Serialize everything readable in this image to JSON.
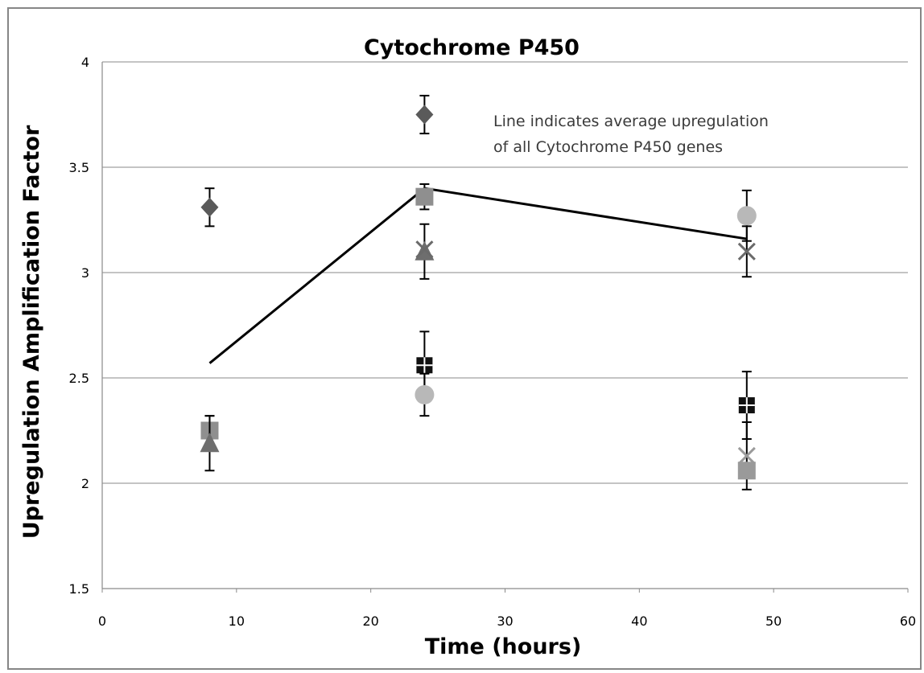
{
  "chart_data": {
    "type": "scatter",
    "title": "Cytochrome P450",
    "xlabel": "Time (hours)",
    "ylabel": "Upregulation Amplification Factor",
    "xlim": [
      0,
      60
    ],
    "ylim": [
      1.5,
      4
    ],
    "xticks": [
      "0",
      "10",
      "20",
      "30",
      "40",
      "50",
      "60"
    ],
    "yticks": [
      "1.5",
      "2",
      "2.5",
      "3",
      "3.5",
      "4"
    ],
    "grid": "horizontal",
    "legend": "none",
    "annotation": [
      "Line indicates average upregulation",
      "of all Cytochrome P450 genes"
    ],
    "series": [
      {
        "marker": "diamond",
        "color": "#5a5a5a",
        "points": [
          {
            "x": 8,
            "y": 3.31,
            "err": 0.09
          },
          {
            "x": 24,
            "y": 3.75,
            "err": 0.09
          }
        ]
      },
      {
        "marker": "square",
        "color": "#8f8f8f",
        "points": [
          {
            "x": 8,
            "y": 2.25,
            "err": 0.07
          },
          {
            "x": 24,
            "y": 3.36,
            "err": 0.06
          }
        ]
      },
      {
        "marker": "triangle",
        "color": "#6e6e6e",
        "points": [
          {
            "x": 8,
            "y": 2.19,
            "err": 0.13
          },
          {
            "x": 24,
            "y": 3.1,
            "err": 0.13
          }
        ]
      },
      {
        "marker": "x",
        "color": "#6a6a6a",
        "points": [
          {
            "x": 24,
            "y": 3.11,
            "err": 0.0
          },
          {
            "x": 48,
            "y": 3.1,
            "err": 0.12
          }
        ]
      },
      {
        "marker": "cross-square",
        "color": "#111111",
        "points": [
          {
            "x": 24,
            "y": 2.56,
            "err": 0.16
          },
          {
            "x": 48,
            "y": 2.37,
            "err": 0.16
          }
        ]
      },
      {
        "marker": "circle",
        "color": "#b8b8b8",
        "points": [
          {
            "x": 24,
            "y": 2.42,
            "err": 0.1
          },
          {
            "x": 48,
            "y": 3.27,
            "err": 0.12
          }
        ]
      },
      {
        "marker": "x",
        "color": "#9a9a9a",
        "points": [
          {
            "x": 48,
            "y": 2.13,
            "err": 0.16
          }
        ]
      },
      {
        "marker": "square",
        "color": "#9a9a9a",
        "points": [
          {
            "x": 48,
            "y": 2.06,
            "err": 0.0
          }
        ]
      }
    ],
    "average_line": {
      "x": [
        8,
        24,
        48
      ],
      "y": [
        2.57,
        3.4,
        3.16
      ]
    }
  }
}
